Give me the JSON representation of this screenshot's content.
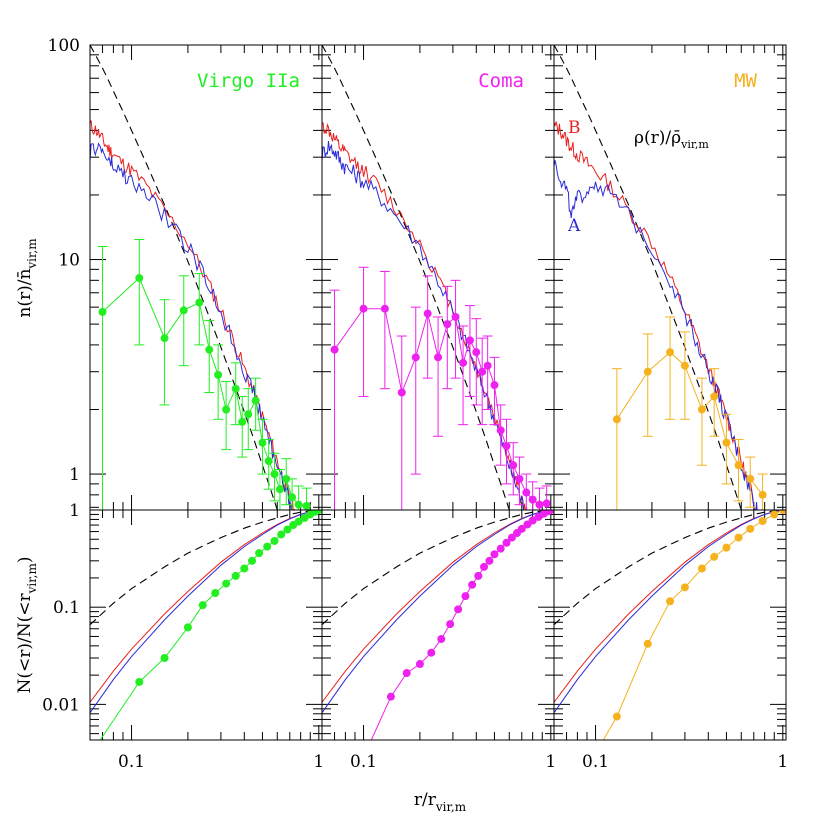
{
  "chart_data": {
    "type": "line",
    "layout": "3 columns x 2 rows of log-log panels sharing x axis",
    "x_axis": {
      "label_main": "r/r",
      "label_sub": "vir,m",
      "scale": "log",
      "range": [
        0.06,
        1.04
      ],
      "tick_labels": [
        "0.1",
        "1"
      ]
    },
    "top_row": {
      "y_label_main": "n(r)/n̄",
      "y_label_sub": "vir,m",
      "y_scale": "log",
      "y_range": [
        0.68,
        100
      ],
      "tick_labels": [
        "100",
        "10",
        "1"
      ],
      "annotation_main": "ρ(r)/ρ̄",
      "annotation_sub": "vir,m"
    },
    "bottom_row": {
      "y_label_main": "N(<r)/N(<r",
      "y_label_sub": "vir,m",
      "y_label_end": ")",
      "y_scale": "log",
      "y_range": [
        0.0043,
        1.0
      ],
      "tick_labels": [
        "1",
        "0.1",
        "0.01"
      ]
    },
    "model_curves": {
      "A": {
        "label": "A",
        "color": "#2a2ad6"
      },
      "B": {
        "label": "B",
        "color": "#e8201e"
      },
      "dashed": {
        "color": "#000000"
      },
      "density_x": [
        0.06,
        0.065,
        0.07,
        0.075,
        0.08,
        0.09,
        0.1,
        0.12,
        0.15,
        0.2,
        0.25,
        0.3,
        0.35,
        0.4,
        0.45,
        0.5,
        0.55,
        0.6,
        0.65,
        0.7,
        0.75,
        0.8
      ],
      "density_B": [
        42,
        40,
        36,
        33,
        31,
        28,
        26,
        22,
        17,
        12,
        8.2,
        5.8,
        4.2,
        3.1,
        2.4,
        1.85,
        1.45,
        1.15,
        0.92,
        0.76,
        0.64,
        0.55
      ],
      "density_A": [
        31,
        34,
        32,
        29,
        27,
        25,
        23,
        20,
        16,
        11.5,
        8.0,
        5.7,
        4.1,
        3.05,
        2.35,
        1.8,
        1.4,
        1.1,
        0.9,
        0.75,
        0.63,
        0.54
      ],
      "density_A_MW": [
        29,
        24,
        21,
        16,
        19,
        21,
        23,
        20,
        16,
        11.5,
        8.0,
        5.7,
        4.1,
        3.05,
        2.35,
        1.8,
        1.4,
        1.1,
        0.9,
        0.75,
        0.63,
        0.54
      ],
      "density_dashed": [
        100,
        88,
        78,
        69,
        61,
        49,
        40,
        28,
        18,
        9.8,
        5.9,
        3.9,
        2.7,
        1.95,
        1.45,
        1.1,
        0.86,
        0.68,
        0.55,
        0.45,
        0.37,
        0.31
      ],
      "cumulative_x": [
        0.06,
        0.08,
        0.1,
        0.15,
        0.2,
        0.3,
        0.4,
        0.5,
        0.6,
        0.7,
        0.8,
        0.9,
        1.0
      ],
      "cumulative_B": [
        0.0105,
        0.022,
        0.037,
        0.085,
        0.145,
        0.29,
        0.44,
        0.58,
        0.71,
        0.82,
        0.9,
        0.96,
        1.0
      ],
      "cumulative_A": [
        0.0082,
        0.018,
        0.031,
        0.074,
        0.13,
        0.27,
        0.42,
        0.56,
        0.7,
        0.81,
        0.9,
        0.96,
        1.0
      ],
      "cumulative_dashed": [
        0.066,
        0.11,
        0.155,
        0.26,
        0.36,
        0.52,
        0.65,
        0.75,
        0.83,
        0.9,
        0.95,
        0.98,
        1.0
      ]
    },
    "panels": [
      {
        "name": "Virgo IIa",
        "color": "#22ee22",
        "density": {
          "x": [
            0.07,
            0.11,
            0.15,
            0.19,
            0.23,
            0.26,
            0.29,
            0.32,
            0.36,
            0.39,
            0.42,
            0.46,
            0.5,
            0.54,
            0.58,
            0.62,
            0.67,
            0.72,
            0.78,
            0.86
          ],
          "y": [
            5.7,
            8.2,
            4.3,
            5.8,
            6.3,
            3.8,
            2.9,
            2.0,
            2.5,
            1.75,
            1.9,
            2.2,
            1.4,
            1.15,
            1.0,
            0.85,
            0.95,
            0.78,
            0.72,
            0.71
          ],
          "err_lo": [
            0.68,
            4.0,
            2.1,
            3.2,
            4.0,
            2.4,
            1.8,
            1.3,
            1.7,
            1.2,
            1.3,
            1.6,
            1.0,
            0.85,
            0.75,
            0.68,
            0.72,
            0.68,
            0.68,
            0.68
          ],
          "err_hi": [
            11.5,
            12.4,
            6.5,
            8.4,
            8.6,
            5.2,
            4.0,
            2.7,
            3.3,
            2.3,
            2.5,
            2.8,
            1.8,
            1.45,
            1.25,
            1.05,
            1.18,
            0.95,
            0.88,
            0.86
          ]
        },
        "cumulative": {
          "x": [
            0.068,
            0.11,
            0.15,
            0.2,
            0.24,
            0.28,
            0.32,
            0.36,
            0.4,
            0.44,
            0.48,
            0.53,
            0.58,
            0.63,
            0.68,
            0.73,
            0.78,
            0.84,
            0.9,
            0.96,
            1.0
          ],
          "y": [
            0.0043,
            0.017,
            0.03,
            0.062,
            0.105,
            0.14,
            0.175,
            0.21,
            0.25,
            0.3,
            0.36,
            0.42,
            0.48,
            0.56,
            0.63,
            0.7,
            0.76,
            0.83,
            0.9,
            0.96,
            1.0
          ]
        }
      },
      {
        "name": "Coma",
        "color": "#ee22ee",
        "density": {
          "x": [
            0.07,
            0.1,
            0.13,
            0.16,
            0.19,
            0.22,
            0.25,
            0.28,
            0.31,
            0.34,
            0.37,
            0.4,
            0.43,
            0.46,
            0.5,
            0.54,
            0.58,
            0.63,
            0.68,
            0.74,
            0.8,
            0.87,
            0.95
          ],
          "y": [
            3.8,
            5.9,
            5.9,
            2.4,
            3.5,
            5.6,
            3.5,
            5.0,
            5.4,
            3.3,
            4.2,
            3.7,
            3.0,
            3.2,
            2.6,
            1.6,
            1.35,
            1.1,
            0.95,
            0.82,
            0.76,
            0.72,
            0.73
          ],
          "err_lo": [
            0.68,
            2.3,
            2.5,
            0.68,
            1.0,
            2.8,
            1.5,
            2.5,
            2.8,
            1.7,
            2.3,
            2.1,
            1.7,
            2.0,
            1.7,
            1.1,
            0.9,
            0.8,
            0.72,
            0.68,
            0.68,
            0.68,
            0.68
          ],
          "err_hi": [
            7.2,
            9.2,
            8.8,
            4.4,
            6.0,
            8.4,
            5.4,
            7.5,
            8.0,
            4.9,
            6.1,
            5.3,
            4.3,
            4.4,
            3.5,
            2.1,
            1.8,
            1.4,
            1.2,
            1.0,
            0.92,
            0.86,
            0.88
          ]
        },
        "cumulative": {
          "x": [
            0.11,
            0.14,
            0.17,
            0.2,
            0.23,
            0.26,
            0.29,
            0.32,
            0.35,
            0.38,
            0.41,
            0.44,
            0.47,
            0.5,
            0.54,
            0.58,
            0.62,
            0.66,
            0.7,
            0.75,
            0.8,
            0.86,
            0.92,
            0.97,
            1.0
          ],
          "y": [
            0.0043,
            0.012,
            0.021,
            0.026,
            0.034,
            0.047,
            0.067,
            0.095,
            0.13,
            0.17,
            0.21,
            0.26,
            0.3,
            0.35,
            0.4,
            0.46,
            0.52,
            0.58,
            0.64,
            0.71,
            0.78,
            0.85,
            0.92,
            0.97,
            1.0
          ]
        }
      },
      {
        "name": "MW",
        "color": "#f5b21e",
        "density": {
          "x": [
            0.13,
            0.19,
            0.25,
            0.3,
            0.37,
            0.43,
            0.5,
            0.58,
            0.67,
            0.78
          ],
          "y": [
            1.8,
            3.0,
            3.7,
            3.2,
            2.0,
            2.3,
            1.4,
            1.1,
            0.95,
            0.8
          ],
          "err_lo": [
            0.68,
            1.5,
            1.8,
            1.8,
            1.1,
            1.5,
            0.9,
            0.75,
            0.7,
            0.68
          ],
          "err_hi": [
            3.1,
            4.5,
            5.4,
            4.6,
            2.8,
            3.1,
            1.9,
            1.45,
            1.2,
            1.0
          ]
        },
        "cumulative": {
          "x": [
            0.11,
            0.13,
            0.19,
            0.25,
            0.3,
            0.37,
            0.43,
            0.5,
            0.58,
            0.67,
            0.78,
            0.9,
            1.0
          ],
          "y": [
            0.0043,
            0.0075,
            0.042,
            0.115,
            0.16,
            0.25,
            0.33,
            0.41,
            0.52,
            0.64,
            0.77,
            0.9,
            1.0
          ]
        }
      }
    ]
  }
}
